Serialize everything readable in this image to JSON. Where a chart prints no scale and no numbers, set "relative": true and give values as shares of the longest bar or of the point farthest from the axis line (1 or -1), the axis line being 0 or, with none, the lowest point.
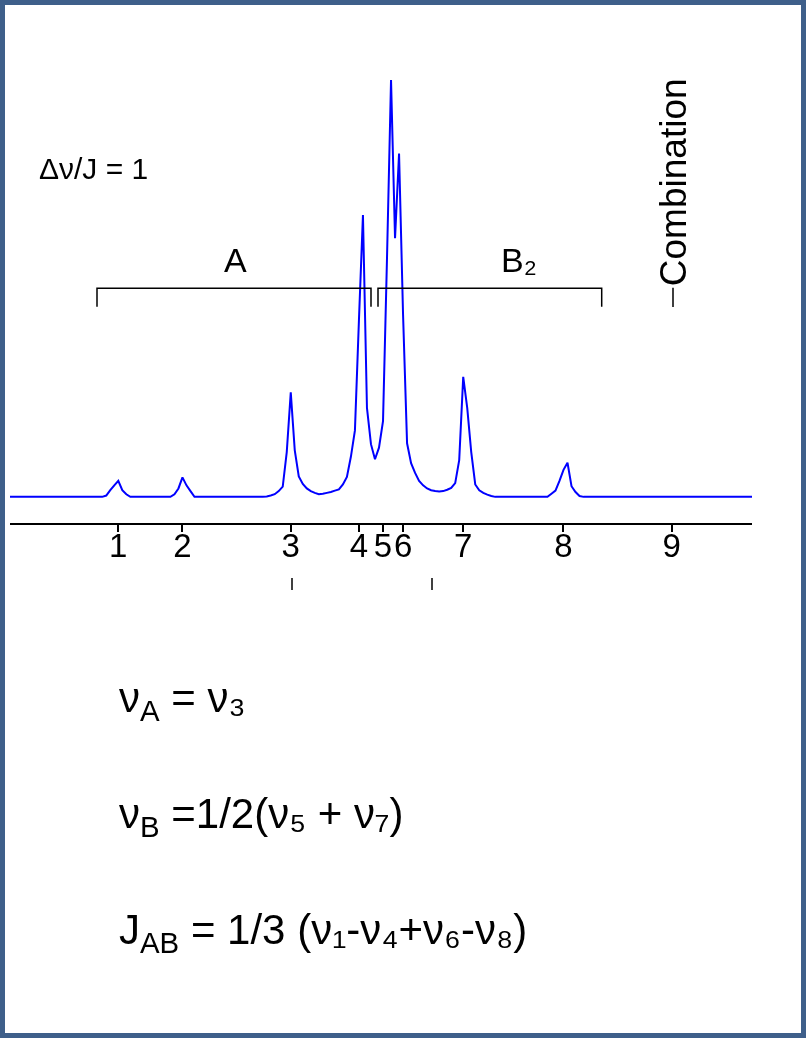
{
  "chart_data": {
    "type": "line",
    "relative": true,
    "categories": [
      null,
      null,
      null,
      null,
      null,
      null,
      null,
      null,
      null,
      null,
      null,
      null,
      null,
      null,
      null,
      null,
      null,
      null,
      null,
      null,
      null,
      null,
      null,
      null,
      null,
      null,
      null,
      "1",
      null,
      null,
      null,
      null,
      null,
      null,
      null,
      null,
      null,
      null,
      null,
      null,
      null,
      null,
      null,
      "2",
      null,
      null,
      null,
      null,
      null,
      null,
      null,
      null,
      null,
      null,
      null,
      null,
      null,
      null,
      null,
      null,
      null,
      null,
      null,
      null,
      null,
      null,
      null,
      null,
      null,
      null,
      "3",
      null,
      null,
      null,
      null,
      null,
      null,
      null,
      null,
      null,
      null,
      null,
      null,
      null,
      null,
      null,
      null,
      "4",
      null,
      null,
      null,
      null,
      null,
      "5",
      null,
      null,
      null,
      null,
      "6",
      null,
      null,
      null,
      null,
      null,
      null,
      null,
      null,
      null,
      null,
      null,
      null,
      null,
      null,
      "7",
      null,
      null,
      null,
      null,
      null,
      null,
      null,
      null,
      null,
      null,
      null,
      null,
      null,
      null,
      null,
      null,
      null,
      null,
      null,
      null,
      null,
      null,
      null,
      null,
      "8",
      null,
      null,
      null,
      null,
      null,
      null,
      null,
      null,
      null,
      null,
      null,
      null,
      null,
      null,
      null,
      null,
      null,
      null,
      null,
      null,
      null,
      null,
      null,
      null,
      null,
      null,
      "9",
      null,
      null,
      null,
      null,
      null,
      null,
      null,
      null,
      null,
      null,
      null,
      null,
      null,
      null,
      null,
      null,
      null,
      null,
      null,
      null
    ],
    "series": [
      {
        "color": "#0000ff",
        "values": [
          0.059,
          0.059,
          0.059,
          0.059,
          0.059,
          0.059,
          0.059,
          0.059,
          0.059,
          0.059,
          0.059,
          0.059,
          0.059,
          0.059,
          0.059,
          0.059,
          0.059,
          0.059,
          0.059,
          0.059,
          0.059,
          0.059,
          0.059,
          0.059,
          0.062,
          0.074,
          0.085,
          0.095,
          0.074,
          0.065,
          0.059,
          0.059,
          0.059,
          0.059,
          0.059,
          0.059,
          0.059,
          0.059,
          0.059,
          0.059,
          0.059,
          0.065,
          0.078,
          0.103,
          0.085,
          0.072,
          0.059,
          0.059,
          0.059,
          0.059,
          0.059,
          0.059,
          0.059,
          0.059,
          0.059,
          0.059,
          0.059,
          0.059,
          0.059,
          0.059,
          0.059,
          0.059,
          0.059,
          0.059,
          0.06,
          0.062,
          0.065,
          0.072,
          0.082,
          0.16,
          0.295,
          0.164,
          0.105,
          0.088,
          0.078,
          0.072,
          0.068,
          0.065,
          0.066,
          0.068,
          0.07,
          0.073,
          0.076,
          0.087,
          0.104,
          0.15,
          0.209,
          0.458,
          0.695,
          0.26,
          0.178,
          0.144,
          0.17,
          0.23,
          0.6,
          1,
          0.643,
          0.834,
          0.47,
          0.18,
          0.135,
          0.113,
          0.095,
          0.085,
          0.078,
          0.074,
          0.072,
          0.071,
          0.072,
          0.075,
          0.079,
          0.09,
          0.142,
          0.33,
          0.26,
          0.16,
          0.087,
          0.074,
          0.068,
          0.064,
          0.061,
          0.059,
          0.059,
          0.059,
          0.059,
          0.059,
          0.059,
          0.059,
          0.059,
          0.059,
          0.059,
          0.059,
          0.059,
          0.059,
          0.059,
          0.066,
          0.073,
          0.095,
          0.12,
          0.136,
          0.083,
          0.07,
          0.061,
          0.059,
          0.059,
          0.059,
          0.059,
          0.059,
          0.059,
          0.059,
          0.059,
          0.059,
          0.059,
          0.059,
          0.059,
          0.059,
          0.059,
          0.059,
          0.059,
          0.059,
          0.059,
          0.059,
          0.059,
          0.059,
          0.059,
          0.059,
          0.059,
          0.059,
          0.059,
          0.059,
          0.059,
          0.059,
          0.059,
          0.059,
          0.059,
          0.059,
          0.059,
          0.059,
          0.059,
          0.059,
          0.059,
          0.059,
          0.059,
          0.059,
          0.059,
          0.059
        ]
      }
    ],
    "annotations": [
      "Δν/J = 1",
      "A",
      "B₂",
      "Combination",
      "ν$_{A}$ = ν₃",
      "ν$_{B}$ =1/2(ν₅ + ν₇)",
      "J$_{AB}$ = 1/3 (ν₁-ν₄+ν₆-ν₈)"
    ]
  }
}
